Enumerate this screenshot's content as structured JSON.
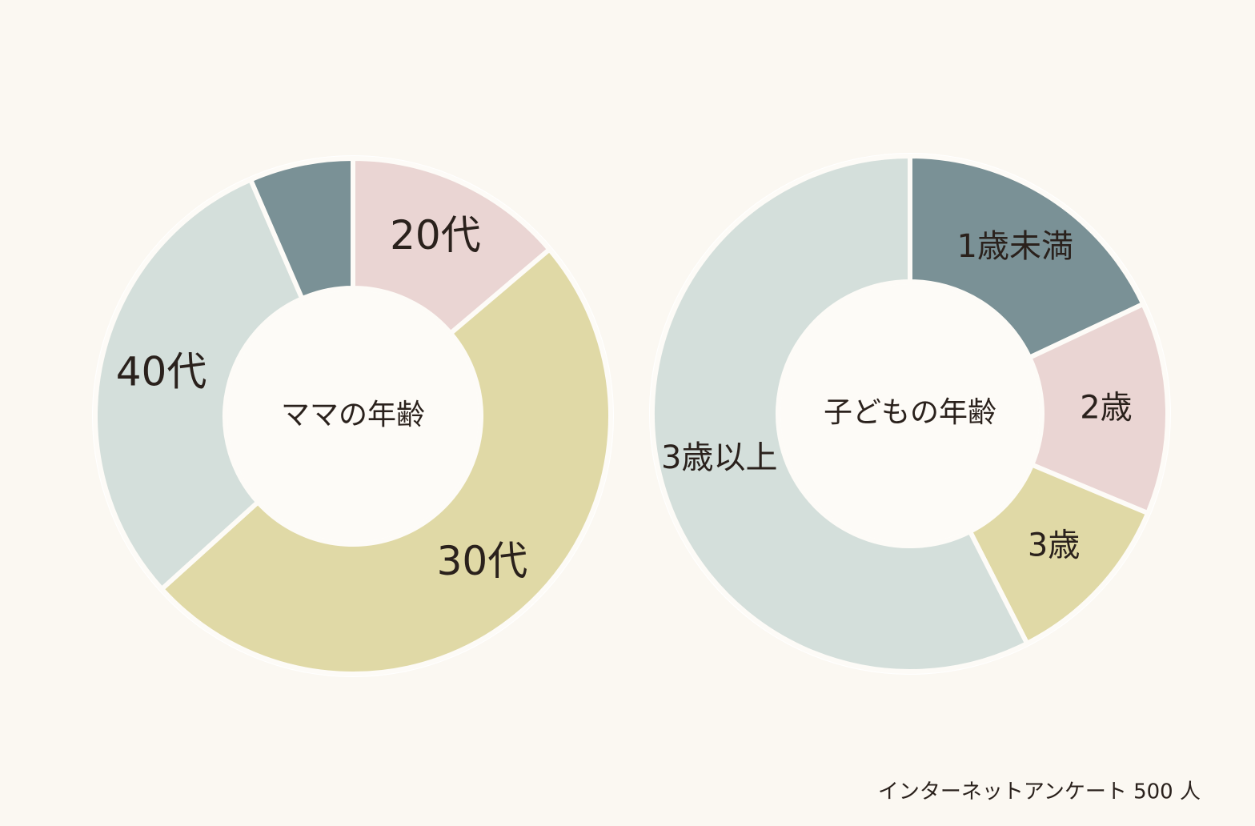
{
  "chart_data": [
    {
      "type": "donut",
      "title": "ママの年齢",
      "categories": [
        "20代",
        "30代",
        "40代",
        null
      ],
      "values": [
        13.8,
        49.5,
        30.2,
        6.5
      ],
      "colors": [
        "#ead5d3",
        "#e0d9a6",
        "#d4dfdb",
        "#7a9196"
      ]
    },
    {
      "type": "donut",
      "title": "子どもの年齢",
      "categories": [
        "1歳未満",
        "2歳",
        "3歳",
        "3歳以上"
      ],
      "values": [
        18,
        13.3,
        11.2,
        57.5
      ],
      "colors": [
        "#7a9196",
        "#ead5d3",
        "#e0d9a6",
        "#d4dfdb"
      ]
    }
  ],
  "caption": "インターネットアンケート 500 人"
}
